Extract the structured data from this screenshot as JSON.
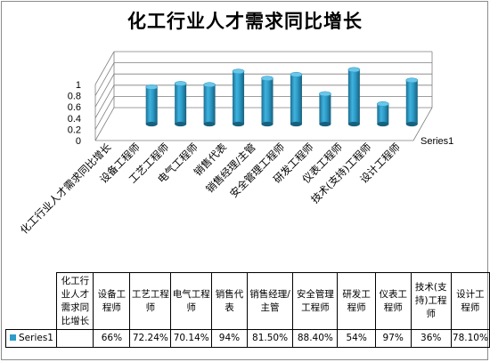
{
  "chart_data": {
    "type": "bar",
    "title": "化工行业人才需求同比增长",
    "categories": [
      "化工行业人才需求同比增长",
      "设备工程师",
      "工艺工程师",
      "电气工程师",
      "销售代表",
      "销售经理/主管",
      "安全管理工程师",
      "研发工程师",
      "仪表工程师",
      "技术(支持)工程师",
      "设计工程师"
    ],
    "table_headers": [
      "化工行业人才需求同比增长",
      "设备工程师",
      "工艺工程师",
      "电气工程师",
      "销售代表",
      "销售经理/主管",
      "安全管理工程师",
      "研发工程师",
      "仪表工程师",
      "技术(支持)工程师",
      "设计工程师"
    ],
    "series": [
      {
        "name": "Series1",
        "values": [
          null,
          0.66,
          0.7224,
          0.7014,
          0.94,
          0.815,
          0.884,
          0.54,
          0.97,
          0.36,
          0.781
        ],
        "labels": [
          "",
          "66%",
          "72.24%",
          "70.14%",
          "94%",
          "81.50%",
          "88.40%",
          "54%",
          "97%",
          "36%",
          "78.10%"
        ],
        "color": "#2e9cc8"
      }
    ],
    "y_ticks": [
      "0",
      "0.2",
      "0.4",
      "0.6",
      "0.8",
      "1"
    ],
    "ylim": [
      0,
      1
    ],
    "grid": true,
    "legend": "data table"
  }
}
